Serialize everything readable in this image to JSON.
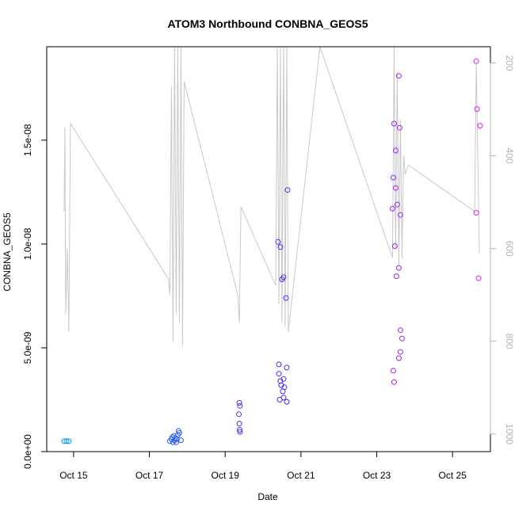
{
  "chart_data": {
    "type": "scatter",
    "title": "ATOM3 Northbound CONBNA_GEOS5",
    "xlabel": "Date",
    "ylabel": "CONBNA_GEOS5",
    "x_ticks": [
      "Oct 15",
      "Oct 17",
      "Oct 19",
      "Oct 21",
      "Oct 23",
      "Oct 25"
    ],
    "x_tick_dates": [
      "2016-10-15",
      "2016-10-17",
      "2016-10-19",
      "2016-10-21",
      "2016-10-23",
      "2016-10-25"
    ],
    "xlim": [
      "2016-10-14 07:00",
      "2016-10-26 00:00"
    ],
    "y_ticks": [
      "0.0e+00",
      "5.0e-09",
      "1.0e-08",
      "1.5e-08"
    ],
    "y_tick_values": [
      0,
      5e-09,
      1e-08,
      1.5e-08
    ],
    "ylim": [
      0,
      1.95e-08
    ],
    "y2_ticks": [
      "200",
      "400",
      "600",
      "800",
      "1000"
    ],
    "y2_tick_values": [
      200,
      400,
      600,
      800,
      1000
    ],
    "y2lim": [
      1038,
      165
    ],
    "y2_reversed": true,
    "colors": {
      "pressure_line": "#c8c8c8",
      "right_axis": "#b3b3b3",
      "points_low": "#0aa8e6",
      "points_high": "#e61ee6"
    },
    "series": [
      {
        "points": [
          {
            "x": "2016-10-14 18:00",
            "y": 5e-10
          },
          {
            "x": "2016-10-14 19:30",
            "y": 5e-10
          },
          {
            "x": "2016-10-14 21:00",
            "y": 5e-10
          },
          {
            "x": "2016-10-17 13:00",
            "y": 5e-10
          },
          {
            "x": "2016-10-17 14:00",
            "y": 6e-10
          },
          {
            "x": "2016-10-17 14:30",
            "y": 7e-10
          },
          {
            "x": "2016-10-17 15:00",
            "y": 4.5e-10
          },
          {
            "x": "2016-10-17 15:30",
            "y": 7.5e-10
          },
          {
            "x": "2016-10-17 16:00",
            "y": 5.5e-10
          },
          {
            "x": "2016-10-17 16:30",
            "y": 6.5e-10
          },
          {
            "x": "2016-10-17 17:00",
            "y": 4.5e-10
          },
          {
            "x": "2016-10-17 17:30",
            "y": 6e-10
          },
          {
            "x": "2016-10-17 18:00",
            "y": 8e-10
          },
          {
            "x": "2016-10-17 18:30",
            "y": 1e-09
          },
          {
            "x": "2016-10-17 19:00",
            "y": 9e-10
          },
          {
            "x": "2016-10-17 20:00",
            "y": 5.5e-10
          },
          {
            "x": "2016-10-19 09:00",
            "y": 2.35e-09
          },
          {
            "x": "2016-10-19 09:20",
            "y": 2.2e-09
          },
          {
            "x": "2016-10-19 08:40",
            "y": 1.8e-09
          },
          {
            "x": "2016-10-19 09:00",
            "y": 1.35e-09
          },
          {
            "x": "2016-10-19 09:10",
            "y": 1.05e-09
          },
          {
            "x": "2016-10-19 09:20",
            "y": 9.5e-10
          },
          {
            "x": "2016-10-20 10:00",
            "y": 4.2e-09
          },
          {
            "x": "2016-10-20 10:00",
            "y": 3.75e-09
          },
          {
            "x": "2016-10-20 11:00",
            "y": 3.4e-09
          },
          {
            "x": "2016-10-20 11:30",
            "y": 3.2e-09
          },
          {
            "x": "2016-10-20 13:00",
            "y": 3.5e-09
          },
          {
            "x": "2016-10-20 13:30",
            "y": 3.1e-09
          },
          {
            "x": "2016-10-20 12:30",
            "y": 2.9e-09
          },
          {
            "x": "2016-10-20 13:00",
            "y": 2.6e-09
          },
          {
            "x": "2016-10-20 10:30",
            "y": 2.5e-09
          },
          {
            "x": "2016-10-20 15:00",
            "y": 2.4e-09
          },
          {
            "x": "2016-10-20 15:00",
            "y": 4.05e-09
          },
          {
            "x": "2016-10-20 09:30",
            "y": 1.01e-08
          },
          {
            "x": "2016-10-20 11:00",
            "y": 9.85e-09
          },
          {
            "x": "2016-10-20 12:00",
            "y": 8.3e-09
          },
          {
            "x": "2016-10-20 13:00",
            "y": 8.4e-09
          },
          {
            "x": "2016-10-20 14:30",
            "y": 7.4e-09
          },
          {
            "x": "2016-10-20 15:30",
            "y": 1.26e-08
          },
          {
            "x": "2016-10-23 10:30",
            "y": 3.9e-09
          },
          {
            "x": "2016-10-23 11:00",
            "y": 3.35e-09
          },
          {
            "x": "2016-10-23 14:00",
            "y": 4.5e-09
          },
          {
            "x": "2016-10-23 15:00",
            "y": 4.8e-09
          },
          {
            "x": "2016-10-23 15:00",
            "y": 5.85e-09
          },
          {
            "x": "2016-10-23 16:00",
            "y": 5.45e-09
          },
          {
            "x": "2016-10-23 10:30",
            "y": 1.32e-08
          },
          {
            "x": "2016-10-23 10:00",
            "y": 1.17e-08
          },
          {
            "x": "2016-10-23 11:00",
            "y": 1.58e-08
          },
          {
            "x": "2016-10-23 12:00",
            "y": 1.45e-08
          },
          {
            "x": "2016-10-23 12:00",
            "y": 1.27e-08
          },
          {
            "x": "2016-10-23 13:00",
            "y": 1.19e-08
          },
          {
            "x": "2016-10-23 14:00",
            "y": 1.81e-08
          },
          {
            "x": "2016-10-23 14:30",
            "y": 1.56e-08
          },
          {
            "x": "2016-10-23 15:00",
            "y": 1.14e-08
          },
          {
            "x": "2016-10-23 11:30",
            "y": 9.9e-09
          },
          {
            "x": "2016-10-23 12:30",
            "y": 8.45e-09
          },
          {
            "x": "2016-10-23 14:00",
            "y": 8.85e-09
          },
          {
            "x": "2016-10-25 15:00",
            "y": 1.88e-08
          },
          {
            "x": "2016-10-25 15:30",
            "y": 1.65e-08
          },
          {
            "x": "2016-10-25 17:30",
            "y": 1.57e-08
          },
          {
            "x": "2016-10-25 15:00",
            "y": 1.15e-08
          },
          {
            "x": "2016-10-25 16:30",
            "y": 8.35e-09
          }
        ]
      }
    ],
    "pressure_series": {
      "points": [
        {
          "x": "2016-10-14 18:00",
          "y2": 520
        },
        {
          "x": "2016-10-14 18:30",
          "y2": 340
        },
        {
          "x": "2016-10-14 19:00",
          "y2": 740
        },
        {
          "x": "2016-10-14 20:00",
          "y2": 600
        },
        {
          "x": "2016-10-14 21:00",
          "y2": 780
        },
        {
          "x": "2016-10-14 22:00",
          "y2": 330
        },
        {
          "x": "2016-10-17 12:00",
          "y2": 665
        },
        {
          "x": "2016-10-17 13:00",
          "y2": 700
        },
        {
          "x": "2016-10-17 14:00",
          "y2": 250
        },
        {
          "x": "2016-10-17 15:00",
          "y2": 800
        },
        {
          "x": "2016-10-17 16:00",
          "y2": 165
        },
        {
          "x": "2016-10-17 17:00",
          "y2": 740
        },
        {
          "x": "2016-10-17 18:00",
          "y2": 165
        },
        {
          "x": "2016-10-17 19:00",
          "y2": 760
        },
        {
          "x": "2016-10-17 20:00",
          "y2": 165
        },
        {
          "x": "2016-10-17 21:00",
          "y2": 810
        },
        {
          "x": "2016-10-17 22:00",
          "y2": 240
        },
        {
          "x": "2016-10-19 08:00",
          "y2": 700
        },
        {
          "x": "2016-10-19 09:00",
          "y2": 760
        },
        {
          "x": "2016-10-19 10:00",
          "y2": 510
        },
        {
          "x": "2016-10-20 08:00",
          "y2": 680
        },
        {
          "x": "2016-10-20 09:00",
          "y2": 165
        },
        {
          "x": "2016-10-20 10:00",
          "y2": 720
        },
        {
          "x": "2016-10-20 11:00",
          "y2": 165
        },
        {
          "x": "2016-10-20 12:00",
          "y2": 760
        },
        {
          "x": "2016-10-20 13:00",
          "y2": 165
        },
        {
          "x": "2016-10-20 14:00",
          "y2": 770
        },
        {
          "x": "2016-10-20 15:00",
          "y2": 165
        },
        {
          "x": "2016-10-20 16:00",
          "y2": 780
        },
        {
          "x": "2016-10-21 12:00",
          "y2": 165
        },
        {
          "x": "2016-10-23 10:00",
          "y2": 620
        },
        {
          "x": "2016-10-23 11:00",
          "y2": 165
        },
        {
          "x": "2016-10-23 12:00",
          "y2": 600
        },
        {
          "x": "2016-10-23 13:00",
          "y2": 220
        },
        {
          "x": "2016-10-23 14:00",
          "y2": 640
        },
        {
          "x": "2016-10-23 15:00",
          "y2": 320
        },
        {
          "x": "2016-10-23 16:00",
          "y2": 620
        },
        {
          "x": "2016-10-23 17:00",
          "y2": 400
        },
        {
          "x": "2016-10-23 18:00",
          "y2": 440
        },
        {
          "x": "2016-10-23 20:00",
          "y2": 420
        },
        {
          "x": "2016-10-25 14:00",
          "y2": 520
        },
        {
          "x": "2016-10-25 15:00",
          "y2": 200
        },
        {
          "x": "2016-10-25 17:00",
          "y2": 610
        }
      ]
    }
  }
}
